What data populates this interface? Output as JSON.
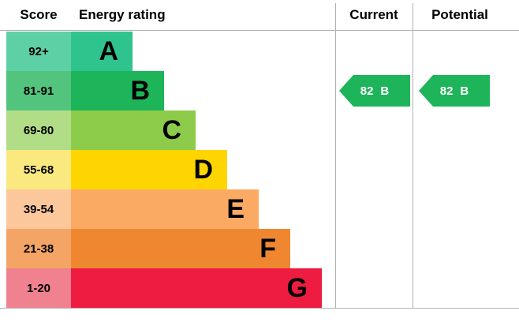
{
  "header": {
    "score": "Score",
    "energy_rating": "Energy rating",
    "current": "Current",
    "potential": "Potential"
  },
  "rows": [
    {
      "score": "92+",
      "letter": "A",
      "bar_color": "#2fc48d",
      "tint_color": "#5ed0a5"
    },
    {
      "score": "81-91",
      "letter": "B",
      "bar_color": "#1eb45a",
      "tint_color": "#52c47e"
    },
    {
      "score": "69-80",
      "letter": "C",
      "bar_color": "#8ccc4a",
      "tint_color": "#b2dd87"
    },
    {
      "score": "55-68",
      "letter": "D",
      "bar_color": "#ffd500",
      "tint_color": "#f9e97f"
    },
    {
      "score": "39-54",
      "letter": "E",
      "bar_color": "#fbaa64",
      "tint_color": "#fcc79b"
    },
    {
      "score": "21-38",
      "letter": "F",
      "bar_color": "#ef8731",
      "tint_color": "#f4a566"
    },
    {
      "score": "1-20",
      "letter": "G",
      "bar_color": "#ee1c40",
      "tint_color": "#f0818f"
    }
  ],
  "current": {
    "value": "82",
    "letter": "B",
    "color": "#1eb45a"
  },
  "potential": {
    "value": "82",
    "letter": "B",
    "color": "#1eb45a"
  },
  "chart_data": {
    "type": "bar",
    "title": "Energy rating",
    "categories": [
      "A",
      "B",
      "C",
      "D",
      "E",
      "F",
      "G"
    ],
    "score_bands": [
      "92+",
      "81-91",
      "69-80",
      "55-68",
      "39-54",
      "21-38",
      "1-20"
    ],
    "bar_widths_relative": [
      1,
      2,
      3,
      4,
      5,
      6,
      7
    ],
    "bar_colors": [
      "#2fc48d",
      "#1eb45a",
      "#8ccc4a",
      "#ffd500",
      "#fbaa64",
      "#ef8731",
      "#ee1c40"
    ],
    "columns": [
      "Score",
      "Energy rating",
      "Current",
      "Potential"
    ],
    "current": {
      "value": 82,
      "band": "B"
    },
    "potential": {
      "value": 82,
      "band": "B"
    },
    "legend_position": "none",
    "grid": false
  }
}
